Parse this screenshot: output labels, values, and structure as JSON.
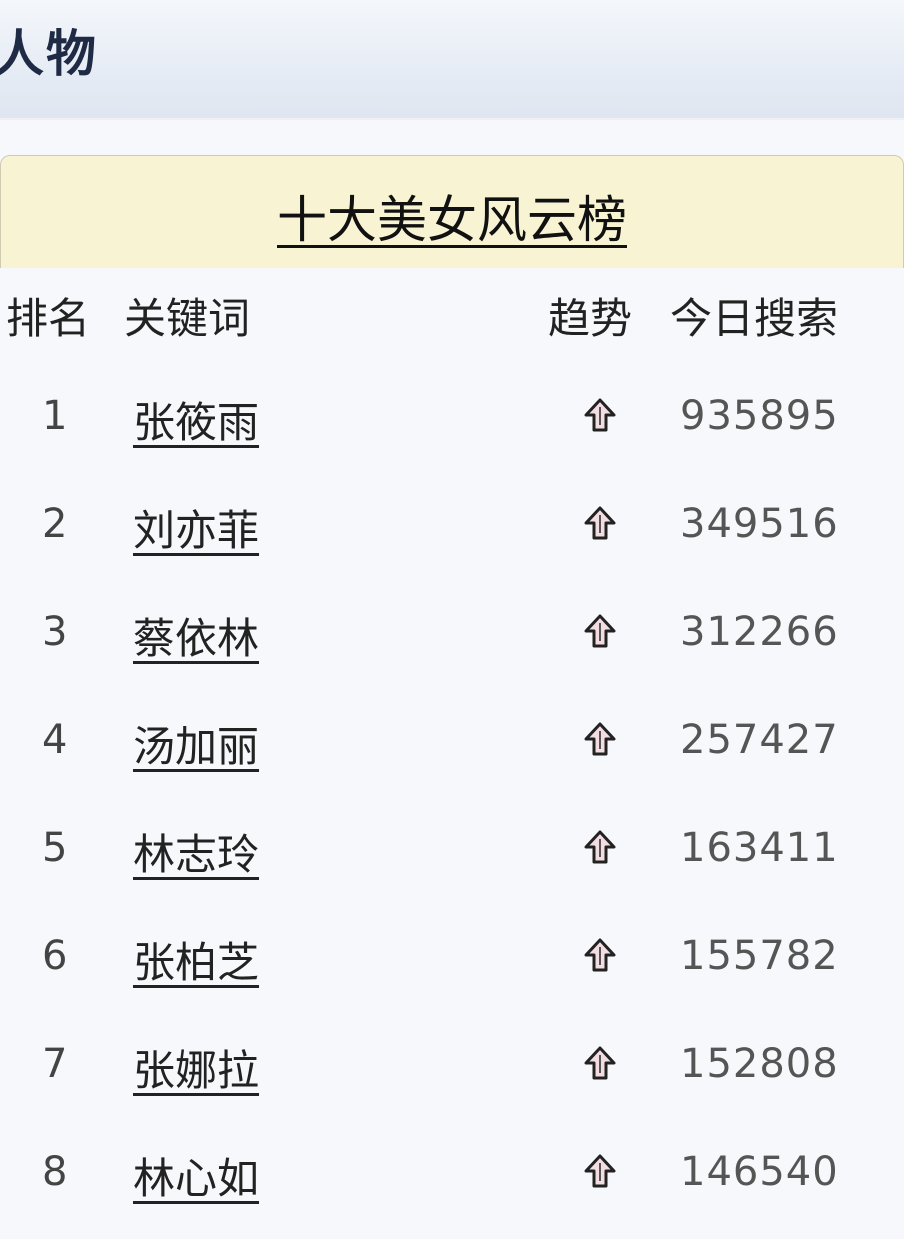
{
  "header": {
    "title": "人物"
  },
  "board": {
    "title": "十大美女风云榜",
    "columns": {
      "rank": "排名",
      "keyword": "关键词",
      "trend": "趋势",
      "search": "今日搜索"
    },
    "trend_icon": "up-arrow-icon",
    "rows": [
      {
        "rank": "1",
        "name": "张筱雨",
        "trend": "up",
        "count": "935895"
      },
      {
        "rank": "2",
        "name": "刘亦菲",
        "trend": "up",
        "count": "349516"
      },
      {
        "rank": "3",
        "name": "蔡依林",
        "trend": "up",
        "count": "312266"
      },
      {
        "rank": "4",
        "name": "汤加丽",
        "trend": "up",
        "count": "257427"
      },
      {
        "rank": "5",
        "name": "林志玲",
        "trend": "up",
        "count": "163411"
      },
      {
        "rank": "6",
        "name": "张柏芝",
        "trend": "up",
        "count": "155782"
      },
      {
        "rank": "7",
        "name": "张娜拉",
        "trend": "up",
        "count": "152808"
      },
      {
        "rank": "8",
        "name": "林心如",
        "trend": "up",
        "count": "146540"
      }
    ]
  }
}
